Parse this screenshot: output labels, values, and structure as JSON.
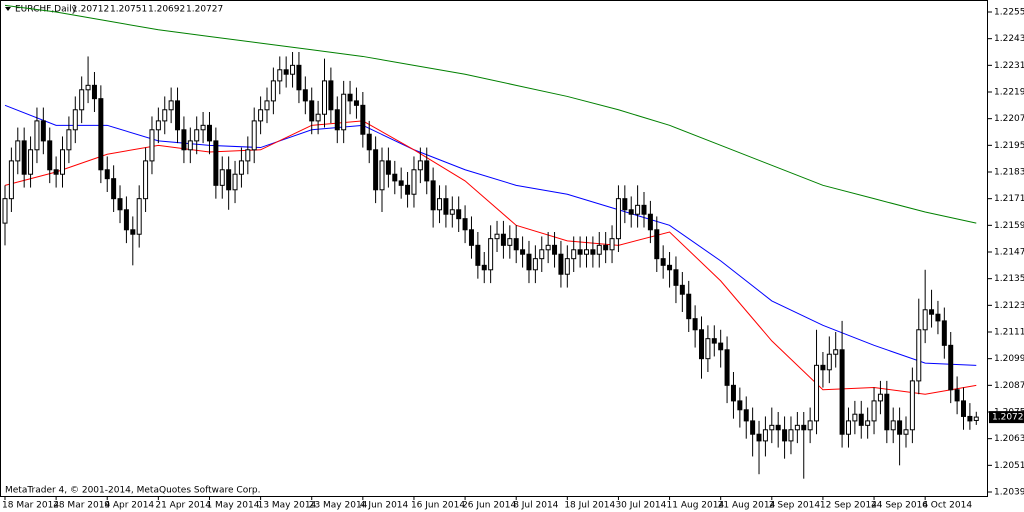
{
  "chart_data": {
    "type": "candlestick",
    "title": "EURCHF,Daily",
    "footer": "MetaTrader 4, © 2001-2014, MetaQuotes Software Corp.",
    "categories": [
      "18 Mar 2014",
      null,
      null,
      null,
      null,
      null,
      null,
      null,
      "28 Mar 2014",
      null,
      null,
      null,
      null,
      null,
      null,
      null,
      "9 Apr 2014",
      null,
      null,
      null,
      null,
      null,
      null,
      null,
      "21 Apr 2014",
      null,
      null,
      null,
      null,
      null,
      null,
      null,
      "1 May 2014",
      null,
      null,
      null,
      null,
      null,
      null,
      null,
      "13 May 2014",
      null,
      null,
      null,
      null,
      null,
      null,
      null,
      "23 May 2014",
      null,
      null,
      null,
      null,
      null,
      null,
      null,
      "4 Jun 2014",
      null,
      null,
      null,
      null,
      null,
      null,
      null,
      "16 Jun 2014",
      null,
      null,
      null,
      null,
      null,
      null,
      null,
      "26 Jun 2014",
      null,
      null,
      null,
      null,
      null,
      null,
      null,
      "8 Jul 2014",
      null,
      null,
      null,
      null,
      null,
      null,
      null,
      "18 Jul 2014",
      null,
      null,
      null,
      null,
      null,
      null,
      null,
      "30 Jul 2014",
      null,
      null,
      null,
      null,
      null,
      null,
      null,
      "11 Aug 2014",
      null,
      null,
      null,
      null,
      null,
      null,
      null,
      "21 Aug 2014",
      null,
      null,
      null,
      null,
      null,
      null,
      null,
      "2 Sep 2014",
      null,
      null,
      null,
      null,
      null,
      null,
      null,
      "12 Sep 2014",
      null,
      null,
      null,
      null,
      null,
      null,
      null,
      "24 Sep 2014",
      null,
      null,
      null,
      null,
      null,
      null,
      null,
      "6 Oct 2014",
      null,
      null,
      null,
      null,
      null,
      null,
      null,
      null
    ],
    "series": {
      "open": [
        1.216,
        1.2171,
        1.2188,
        1.2197,
        1.2182,
        1.2193,
        1.2206,
        1.2197,
        1.2184,
        1.2182,
        1.2193,
        1.2202,
        1.2211,
        1.222,
        1.2222,
        1.2216,
        1.2184,
        1.218,
        1.2171,
        1.2166,
        1.2157,
        1.2155,
        1.2171,
        1.2188,
        1.2202,
        1.2206,
        1.2211,
        1.2215,
        1.2202,
        1.2193,
        1.2197,
        1.2202,
        1.2204,
        1.2197,
        1.2177,
        1.2184,
        1.2175,
        1.2182,
        1.2188,
        1.2193,
        1.2206,
        1.2211,
        1.2215,
        1.2224,
        1.2229,
        1.2227,
        1.2231,
        1.222,
        1.2215,
        1.2206,
        1.2209,
        1.2224,
        1.2211,
        1.2202,
        1.2218,
        1.2215,
        1.2213,
        1.22,
        1.2193,
        1.2175,
        1.2188,
        1.2182,
        1.2179,
        1.2177,
        1.2173,
        1.2184,
        1.2188,
        1.2179,
        1.2166,
        1.2171,
        1.2164,
        1.2166,
        1.2162,
        1.2157,
        1.215,
        1.2141,
        1.2139,
        1.2153,
        1.2155,
        1.215,
        1.2153,
        1.2148,
        1.2146,
        1.2139,
        1.2144,
        1.2148,
        1.215,
        1.2146,
        1.2137,
        1.2144,
        1.2148,
        1.2146,
        1.2148,
        1.2146,
        1.215,
        1.2148,
        1.2153,
        1.2171,
        1.2166,
        1.2164,
        1.2168,
        1.2164,
        1.2157,
        1.2144,
        1.2141,
        1.2139,
        1.2132,
        1.2128,
        1.2117,
        1.2112,
        1.2099,
        1.2108,
        1.2106,
        1.2103,
        1.2087,
        1.208,
        1.2076,
        1.2071,
        1.2065,
        1.2062,
        1.2067,
        1.2069,
        1.2067,
        1.2062,
        1.2067,
        1.2069,
        1.2067,
        1.2071,
        1.2096,
        1.2094,
        1.2101,
        1.2103,
        1.2065,
        1.2071,
        1.2074,
        1.2069,
        1.2071,
        1.208,
        1.2083,
        1.2067,
        1.2071,
        1.2065,
        1.2067,
        1.2089,
        1.2112,
        1.2121,
        1.2119,
        1.2116,
        1.2105,
        1.2085,
        1.208,
        1.2073,
        1.20712
      ],
      "high": [
        1.2177,
        1.2194,
        1.2203,
        1.2203,
        1.2199,
        1.2212,
        1.2212,
        1.2203,
        1.219,
        1.2199,
        1.2208,
        1.2217,
        1.2226,
        1.2235,
        1.2228,
        1.2222,
        1.219,
        1.2186,
        1.2177,
        1.2172,
        1.2163,
        1.2177,
        1.2194,
        1.2208,
        1.2212,
        1.2217,
        1.2221,
        1.2221,
        1.2208,
        1.2203,
        1.2208,
        1.221,
        1.221,
        1.2203,
        1.219,
        1.219,
        1.2188,
        1.2194,
        1.2199,
        1.2212,
        1.2217,
        1.2221,
        1.223,
        1.2235,
        1.2235,
        1.2237,
        1.2237,
        1.2226,
        1.2221,
        1.2215,
        1.2234,
        1.223,
        1.2217,
        1.2224,
        1.2224,
        1.2221,
        1.2219,
        1.2206,
        1.2199,
        1.2194,
        1.2194,
        1.2188,
        1.2185,
        1.2183,
        1.219,
        1.2194,
        1.2194,
        1.2185,
        1.2177,
        1.2177,
        1.2172,
        1.2172,
        1.2168,
        1.2163,
        1.2156,
        1.2147,
        1.2159,
        1.2161,
        1.2161,
        1.2159,
        1.2159,
        1.2154,
        1.2152,
        1.215,
        1.2154,
        1.2156,
        1.2156,
        1.2152,
        1.215,
        1.2154,
        1.2154,
        1.2154,
        1.2154,
        1.2156,
        1.2156,
        1.2159,
        1.2177,
        1.2177,
        1.2172,
        1.2177,
        1.2174,
        1.217,
        1.2163,
        1.215,
        1.2147,
        1.2145,
        1.2138,
        1.2134,
        1.2123,
        1.2118,
        1.2114,
        1.2114,
        1.2112,
        1.2109,
        1.2093,
        1.2086,
        1.2082,
        1.2077,
        1.2071,
        1.2073,
        1.2077,
        1.2075,
        1.2073,
        1.2073,
        1.2075,
        1.2075,
        1.2077,
        1.2112,
        1.2102,
        1.2109,
        1.2111,
        1.2116,
        1.2077,
        1.208,
        1.208,
        1.2077,
        1.2086,
        1.2089,
        1.2089,
        1.2077,
        1.2077,
        1.2073,
        1.2095,
        1.2126,
        1.2139,
        1.213,
        1.2125,
        1.2122,
        1.2111,
        1.2091,
        1.2086,
        1.2079,
        1.20751
      ],
      "low": [
        1.215,
        1.2165,
        1.2182,
        1.2176,
        1.2176,
        1.2187,
        1.2191,
        1.2178,
        1.2176,
        1.2176,
        1.2187,
        1.2196,
        1.2205,
        1.2214,
        1.221,
        1.2178,
        1.2174,
        1.2165,
        1.216,
        1.2151,
        1.2141,
        1.2149,
        1.2165,
        1.2182,
        1.2196,
        1.22,
        1.2205,
        1.2196,
        1.2187,
        1.2187,
        1.2191,
        1.2196,
        1.2191,
        1.2171,
        1.2171,
        1.2166,
        1.2169,
        1.2176,
        1.2182,
        1.2187,
        1.22,
        1.2205,
        1.2209,
        1.2218,
        1.2221,
        1.2221,
        1.2214,
        1.2209,
        1.22,
        1.22,
        1.2203,
        1.2205,
        1.2196,
        1.2196,
        1.2209,
        1.2207,
        1.2194,
        1.2187,
        1.2169,
        1.2165,
        1.2176,
        1.2173,
        1.2171,
        1.2167,
        1.2167,
        1.2178,
        1.2173,
        1.2158,
        1.216,
        1.2158,
        1.2158,
        1.2156,
        1.2151,
        1.2144,
        1.2135,
        1.2133,
        1.2133,
        1.2147,
        1.2144,
        1.2144,
        1.2142,
        1.214,
        1.2133,
        1.2133,
        1.2138,
        1.2142,
        1.214,
        1.2131,
        1.2131,
        1.2138,
        1.214,
        1.214,
        1.214,
        1.214,
        1.2142,
        1.2142,
        1.2147,
        1.216,
        1.2158,
        1.2158,
        1.2158,
        1.2151,
        1.2138,
        1.2135,
        1.2131,
        1.2124,
        1.212,
        1.2111,
        1.2104,
        1.209,
        1.2093,
        1.21,
        1.2095,
        1.2079,
        1.2072,
        1.2068,
        1.2063,
        1.2055,
        1.2047,
        1.2055,
        1.2061,
        1.2059,
        1.2054,
        1.2056,
        1.2061,
        1.2045,
        1.2061,
        1.2065,
        1.2086,
        1.2088,
        1.2095,
        1.2059,
        1.2059,
        1.2065,
        1.2063,
        1.2063,
        1.2065,
        1.2074,
        1.2061,
        1.2061,
        1.2051,
        1.2059,
        1.2061,
        1.2083,
        1.2106,
        1.2113,
        1.211,
        1.2099,
        1.2079,
        1.2074,
        1.2067,
        1.2067,
        1.20692
      ],
      "close": [
        1.2171,
        1.2188,
        1.2197,
        1.2182,
        1.2193,
        1.2206,
        1.2197,
        1.2184,
        1.2182,
        1.2193,
        1.2202,
        1.2211,
        1.222,
        1.2222,
        1.2216,
        1.2184,
        1.218,
        1.2171,
        1.2166,
        1.2157,
        1.2155,
        1.2171,
        1.2188,
        1.2202,
        1.2206,
        1.2211,
        1.2215,
        1.2202,
        1.2193,
        1.2197,
        1.2202,
        1.2204,
        1.2197,
        1.2177,
        1.2184,
        1.2175,
        1.2182,
        1.2188,
        1.2193,
        1.2206,
        1.2211,
        1.2215,
        1.2224,
        1.2229,
        1.2227,
        1.2231,
        1.222,
        1.2215,
        1.2206,
        1.2209,
        1.2224,
        1.2211,
        1.2202,
        1.2218,
        1.2215,
        1.2213,
        1.22,
        1.2193,
        1.2175,
        1.2188,
        1.2182,
        1.2179,
        1.2177,
        1.2173,
        1.2184,
        1.2188,
        1.2179,
        1.2166,
        1.2171,
        1.2164,
        1.2166,
        1.2162,
        1.2157,
        1.215,
        1.2141,
        1.2139,
        1.2153,
        1.2155,
        1.215,
        1.2153,
        1.2148,
        1.2146,
        1.2139,
        1.2144,
        1.2148,
        1.215,
        1.2146,
        1.2137,
        1.2144,
        1.2148,
        1.2146,
        1.2148,
        1.2146,
        1.215,
        1.2148,
        1.2153,
        1.2171,
        1.2166,
        1.2164,
        1.2168,
        1.2164,
        1.2157,
        1.2144,
        1.2141,
        1.2139,
        1.2132,
        1.2128,
        1.2117,
        1.2112,
        1.2099,
        1.2108,
        1.2106,
        1.2103,
        1.2087,
        1.208,
        1.2076,
        1.2071,
        1.2065,
        1.2062,
        1.2067,
        1.2069,
        1.2067,
        1.2062,
        1.2067,
        1.2069,
        1.2067,
        1.2071,
        1.2096,
        1.2094,
        1.2101,
        1.2103,
        1.2065,
        1.2071,
        1.2074,
        1.2069,
        1.2071,
        1.208,
        1.2083,
        1.2067,
        1.2071,
        1.2065,
        1.2067,
        1.2089,
        1.2112,
        1.2121,
        1.2119,
        1.2116,
        1.2105,
        1.2085,
        1.208,
        1.2073,
        1.2071,
        1.20727
      ]
    },
    "bull_color": "#ffffff",
    "bear_color": "#000000",
    "lines": [
      {
        "color": "#008000",
        "x": [
          0,
          8,
          16,
          24,
          32,
          40,
          48,
          56,
          64,
          72,
          80,
          88,
          96,
          104,
          112,
          120,
          128,
          136,
          144,
          152
        ],
        "values": [
          1.2258,
          1.2255,
          1.2251,
          1.2247,
          1.2244,
          1.2241,
          1.2238,
          1.2235,
          1.2231,
          1.2227,
          1.2222,
          1.2217,
          1.2211,
          1.2204,
          1.2195,
          1.2186,
          1.2177,
          1.2171,
          1.2165,
          1.216
        ]
      },
      {
        "color": "#0000ff",
        "x": [
          0,
          8,
          16,
          24,
          32,
          40,
          48,
          56,
          64,
          72,
          80,
          88,
          96,
          104,
          112,
          120,
          128,
          136,
          144,
          152
        ],
        "values": [
          1.2213,
          1.2204,
          1.2204,
          1.2197,
          1.2195,
          1.2194,
          1.2202,
          1.2204,
          1.2193,
          1.2184,
          1.2177,
          1.2173,
          1.2166,
          1.2159,
          1.2143,
          1.2125,
          1.2114,
          1.2105,
          1.2097,
          1.2096
        ]
      },
      {
        "color": "#ff0000",
        "x": [
          0,
          8,
          16,
          24,
          32,
          40,
          48,
          56,
          64,
          72,
          80,
          88,
          96,
          104,
          112,
          120,
          128,
          136,
          144,
          152
        ],
        "values": [
          1.2177,
          1.2183,
          1.2191,
          1.2195,
          1.2192,
          1.2193,
          1.2204,
          1.2206,
          1.2193,
          1.2179,
          1.2159,
          1.2152,
          1.215,
          1.2156,
          1.2134,
          1.2107,
          1.2085,
          1.2086,
          1.2083,
          1.2087
        ]
      }
    ],
    "bid": 1.20727,
    "ylim": [
      1.20372,
      1.22604
    ],
    "yticks": [
      {
        "value": 1.2255,
        "label": "1.22550"
      },
      {
        "value": 1.2243,
        "label": "1.22430"
      },
      {
        "value": 1.2231,
        "label": "1.22310"
      },
      {
        "value": 1.2219,
        "label": "1.22190"
      },
      {
        "value": 1.2207,
        "label": "1.22070"
      },
      {
        "value": 1.2195,
        "label": "1.21950"
      },
      {
        "value": 1.2183,
        "label": "1.21830"
      },
      {
        "value": 1.2171,
        "label": "1.21710"
      },
      {
        "value": 1.2159,
        "label": "1.21590"
      },
      {
        "value": 1.2147,
        "label": "1.21470"
      },
      {
        "value": 1.2135,
        "label": "1.21350"
      },
      {
        "value": 1.2123,
        "label": "1.21230"
      },
      {
        "value": 1.2111,
        "label": "1.21110"
      },
      {
        "value": 1.2099,
        "label": "1.20990"
      },
      {
        "value": 1.2087,
        "label": "1.20870"
      },
      {
        "value": 1.2075,
        "label": "1.20750"
      },
      {
        "value": 1.2063,
        "label": "1.20630"
      },
      {
        "value": 1.2051,
        "label": "1.20510"
      },
      {
        "value": 1.2039,
        "label": "1.20390"
      }
    ],
    "grid": false,
    "y_axis_side": "right"
  }
}
